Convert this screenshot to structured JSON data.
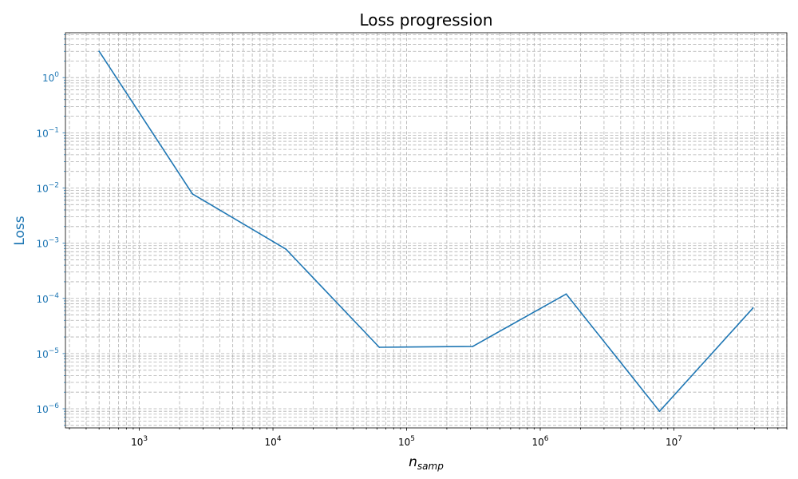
{
  "chart_data": {
    "type": "line",
    "title": "Loss progression",
    "xlabel": "n",
    "xlabel_sub": "samp",
    "ylabel": "Loss",
    "xscale": "log",
    "yscale": "log",
    "xlim": [
      280,
      70000000
    ],
    "ylim": [
      4.5e-07,
      6.5
    ],
    "grid": "both (major and minor, dashed)",
    "x_tick_labels": [
      {
        "base": "10",
        "exp": "3",
        "value": 1000
      },
      {
        "base": "10",
        "exp": "4",
        "value": 10000
      },
      {
        "base": "10",
        "exp": "5",
        "value": 100000
      },
      {
        "base": "10",
        "exp": "6",
        "value": 1000000
      },
      {
        "base": "10",
        "exp": "7",
        "value": 10000000
      }
    ],
    "y_tick_labels": [
      {
        "base": "10",
        "exp": "0",
        "value": 1
      },
      {
        "base": "10",
        "exp": "−1",
        "value": 0.1
      },
      {
        "base": "10",
        "exp": "−2",
        "value": 0.01
      },
      {
        "base": "10",
        "exp": "−3",
        "value": 0.001
      },
      {
        "base": "10",
        "exp": "−4",
        "value": 0.0001
      },
      {
        "base": "10",
        "exp": "−5",
        "value": 1e-05
      },
      {
        "base": "10",
        "exp": "−6",
        "value": 1e-06
      }
    ],
    "series": [
      {
        "color": "#1f77b4",
        "x": [
          500,
          2500,
          12500,
          62500,
          312500,
          1562500,
          7812500,
          39062500
        ],
        "y": [
          3.0,
          0.0078,
          0.00078,
          1.3e-05,
          1.35e-05,
          0.00012,
          9e-07,
          6.7e-05
        ]
      }
    ],
    "axis_color_y": "#1f77b4"
  }
}
